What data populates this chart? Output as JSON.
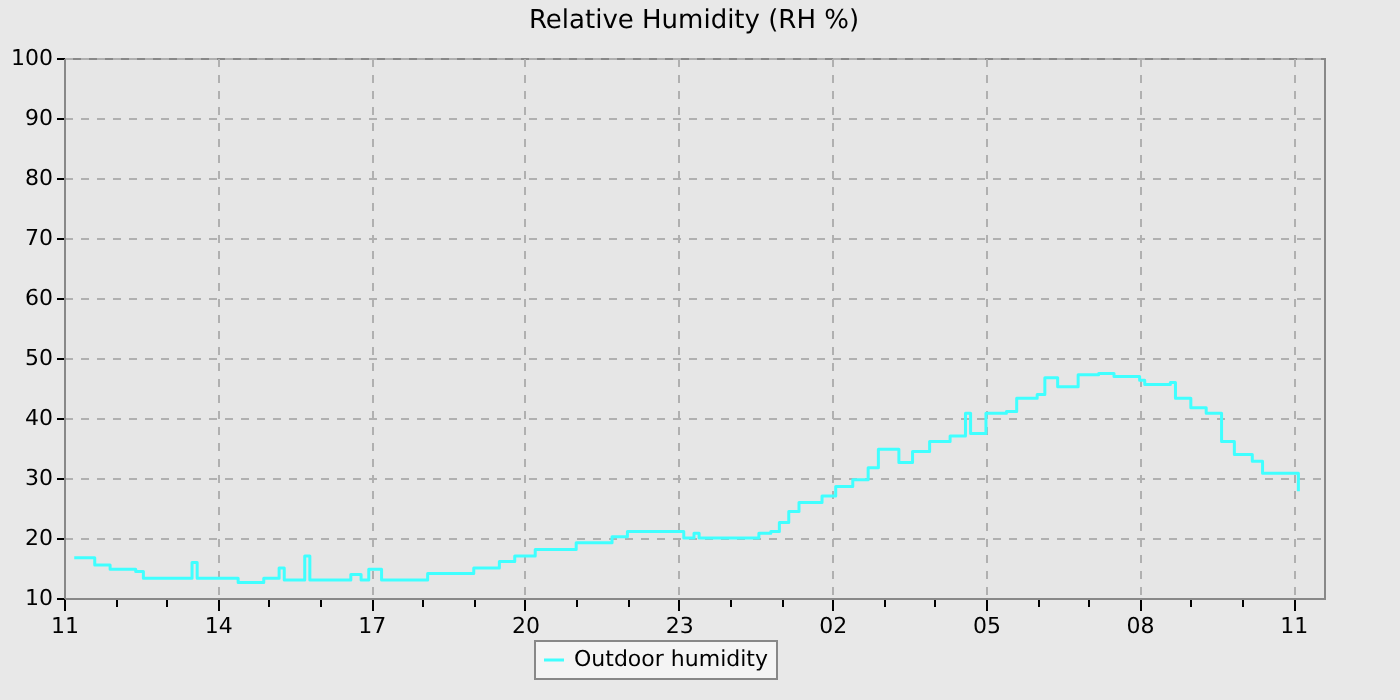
{
  "chart_data": {
    "type": "step",
    "title": "Relative Humidity (RH %)",
    "xlim": [
      "--01-01T11:00",
      "--01-02T11:36"
    ],
    "ylim": [
      10,
      100
    ],
    "xticks": [
      {
        "value": "--01-01T11:00",
        "label": "11"
      },
      {
        "value": "--01-01T12:00",
        "label": null
      },
      {
        "value": "--01-01T13:00",
        "label": null
      },
      {
        "value": "--01-01T14:00",
        "label": "14"
      },
      {
        "value": "--01-01T15:00",
        "label": null
      },
      {
        "value": "--01-01T16:00",
        "label": null
      },
      {
        "value": "--01-01T17:00",
        "label": "17"
      },
      {
        "value": "--01-01T18:00",
        "label": null
      },
      {
        "value": "--01-01T19:00",
        "label": null
      },
      {
        "value": "--01-01T20:00",
        "label": "20"
      },
      {
        "value": "--01-01T21:00",
        "label": null
      },
      {
        "value": "--01-01T22:00",
        "label": null
      },
      {
        "value": "--01-01T23:00",
        "label": "23"
      },
      {
        "value": "--01-02T00:00",
        "label": null
      },
      {
        "value": "--01-02T01:00",
        "label": null
      },
      {
        "value": "--01-02T02:00",
        "label": "02"
      },
      {
        "value": "--01-02T03:00",
        "label": null
      },
      {
        "value": "--01-02T04:00",
        "label": null
      },
      {
        "value": "--01-02T05:00",
        "label": "05"
      },
      {
        "value": "--01-02T06:00",
        "label": null
      },
      {
        "value": "--01-02T07:00",
        "label": null
      },
      {
        "value": "--01-02T08:00",
        "label": "08"
      },
      {
        "value": "--01-02T09:00",
        "label": null
      },
      {
        "value": "--01-02T10:00",
        "label": null
      },
      {
        "value": "--01-02T11:00",
        "label": "11"
      }
    ],
    "yticks": [
      10,
      20,
      30,
      40,
      50,
      60,
      70,
      80,
      90,
      100
    ],
    "grid": true,
    "legend": "bottom",
    "marker": "none",
    "line_style": "solid",
    "series": [
      {
        "name": "Outdoor humidity",
        "color": "#40ffff",
        "x": [
          "--01-01T11:12",
          "--01-01T11:36",
          "--01-01T11:54",
          "--01-01T12:24",
          "--01-01T12:33",
          "--01-01T13:06",
          "--01-01T13:30",
          "--01-01T13:36",
          "--01-01T14:24",
          "--01-01T14:54",
          "--01-01T15:12",
          "--01-01T15:18",
          "--01-01T15:42",
          "--01-01T15:48",
          "--01-01T16:36",
          "--01-01T16:48",
          "--01-01T16:57",
          "--01-01T17:12",
          "--01-01T18:06",
          "--01-01T18:57",
          "--01-01T19:00",
          "--01-01T19:30",
          "--01-01T19:48",
          "--01-01T20:12",
          "--01-01T21:00",
          "--01-01T21:42",
          "--01-01T22:00",
          "--01-01T23:00",
          "--01-01T23:06",
          "--01-01T23:18",
          "--01-01T23:24",
          "--01-02T00:30",
          "--01-02T00:34",
          "--01-02T00:48",
          "--01-02T00:58",
          "--01-02T01:09",
          "--01-02T01:21",
          "--01-02T01:48",
          "--01-02T02:04",
          "--01-02T02:24",
          "--01-02T02:42",
          "--01-02T02:54",
          "--01-02T03:18",
          "--01-02T03:34",
          "--01-02T03:54",
          "--01-02T04:18",
          "--01-02T04:36",
          "--01-02T04:42",
          "--01-02T05:00",
          "--01-02T05:24",
          "--01-02T05:36",
          "--01-02T06:00",
          "--01-02T06:09",
          "--01-02T06:24",
          "--01-02T06:48",
          "--01-02T07:12",
          "--01-02T07:30",
          "--01-02T08:00",
          "--01-02T08:06",
          "--01-02T08:36",
          "--01-02T08:42",
          "--01-02T09:00",
          "--01-02T09:18",
          "--01-02T09:36",
          "--01-02T09:51",
          "--01-02T10:12",
          "--01-02T10:24",
          "--01-02T10:57",
          "--01-02T11:06"
        ],
        "values": [
          16.7,
          15.5,
          14.8,
          14.4,
          13.3,
          13.3,
          15.9,
          13.3,
          12.6,
          13.3,
          15,
          13,
          17,
          13,
          13.9,
          13,
          14.8,
          13,
          14.1,
          14.1,
          15,
          16.1,
          17,
          18.1,
          19.2,
          20.2,
          21.1,
          21.1,
          20,
          20.8,
          20,
          20,
          20.8,
          21.1,
          22.6,
          24.4,
          25.9,
          27,
          28.6,
          29.7,
          31.7,
          34.8,
          32.6,
          34.4,
          36.1,
          37,
          40.8,
          37.4,
          40.8,
          41.1,
          43.3,
          43.9,
          46.7,
          45.2,
          47.2,
          47.4,
          46.9,
          46.3,
          45.6,
          45.9,
          43.3,
          41.7,
          40.8,
          36.1,
          33.9,
          32.8,
          30.8,
          30.8,
          27.8
        ]
      }
    ]
  }
}
